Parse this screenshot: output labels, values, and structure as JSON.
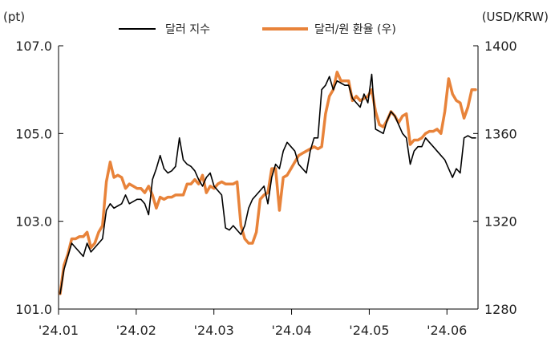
{
  "chart_data": {
    "type": "line",
    "title": "",
    "left_unit": "(pt)",
    "right_unit": "(USD/KRW)",
    "x_tick_labels": [
      "'24.01",
      "'24.02",
      "'24.03",
      "'24.04",
      "'24.05",
      "'24.06"
    ],
    "left_axis": {
      "ylim": [
        101.0,
        107.0
      ],
      "ticks": [
        "101.0",
        "103.0",
        "105.0",
        "107.0"
      ]
    },
    "right_axis": {
      "ylim": [
        1280,
        1400
      ],
      "ticks": [
        "1280",
        "1320",
        "1360",
        "1400"
      ]
    },
    "grid": false,
    "legend_position": "top-center",
    "series": [
      {
        "name": "달러 지수",
        "axis": "left",
        "color": "#000000",
        "values": [
          101.35,
          101.9,
          102.2,
          102.5,
          102.4,
          102.3,
          102.2,
          102.5,
          102.3,
          102.4,
          102.5,
          102.6,
          103.25,
          103.4,
          103.3,
          103.35,
          103.4,
          103.6,
          103.4,
          103.45,
          103.5,
          103.5,
          103.4,
          103.15,
          103.95,
          104.2,
          104.5,
          104.2,
          104.1,
          104.15,
          104.25,
          104.9,
          104.4,
          104.3,
          104.25,
          104.15,
          103.95,
          103.8,
          104.0,
          104.1,
          103.8,
          103.7,
          103.6,
          102.85,
          102.8,
          102.9,
          102.8,
          102.7,
          102.9,
          103.3,
          103.5,
          103.6,
          103.7,
          103.8,
          103.4,
          104.0,
          104.3,
          104.2,
          104.6,
          104.8,
          104.7,
          104.6,
          104.3,
          104.2,
          104.1,
          104.6,
          104.9,
          104.9,
          106.0,
          106.1,
          106.3,
          106.0,
          106.2,
          106.15,
          106.1,
          106.1,
          105.8,
          105.7,
          105.6,
          105.9,
          105.7,
          106.35,
          105.1,
          105.05,
          105.0,
          105.3,
          105.5,
          105.4,
          105.2,
          105.0,
          104.9,
          104.3,
          104.6,
          104.7,
          104.7,
          104.9,
          104.8,
          104.7,
          104.6,
          104.5,
          104.4,
          104.2,
          104.0,
          104.2,
          104.1,
          104.9,
          104.95,
          104.9,
          104.9
        ]
      },
      {
        "name": "달러/원 환율 (우)",
        "axis": "right",
        "color": "#E8833A",
        "values": [
          1287,
          1300,
          1305,
          1312,
          1312,
          1313,
          1313,
          1315,
          1308,
          1310,
          1315,
          1318,
          1338,
          1347,
          1340,
          1341,
          1340,
          1335,
          1337,
          1336,
          1335,
          1335,
          1333,
          1336,
          1332,
          1326,
          1331,
          1330,
          1331,
          1331,
          1332,
          1332,
          1332,
          1337,
          1337,
          1339,
          1337,
          1341,
          1333,
          1336,
          1335,
          1337,
          1338,
          1337,
          1337,
          1337,
          1338,
          1318,
          1312,
          1310,
          1310,
          1315,
          1330,
          1332,
          1333,
          1344,
          1344,
          1325,
          1340,
          1341,
          1344,
          1347,
          1350,
          1351,
          1352,
          1353,
          1354,
          1353,
          1354,
          1369,
          1377,
          1380,
          1388,
          1384,
          1384,
          1384,
          1375,
          1377,
          1375,
          1376,
          1377,
          1380,
          1370,
          1364,
          1363,
          1366,
          1370,
          1368,
          1365,
          1368,
          1369,
          1355,
          1357,
          1357,
          1358,
          1360,
          1361,
          1361,
          1362,
          1360,
          1370,
          1385,
          1378,
          1375,
          1374,
          1367,
          1372,
          1380,
          1380
        ]
      }
    ]
  }
}
